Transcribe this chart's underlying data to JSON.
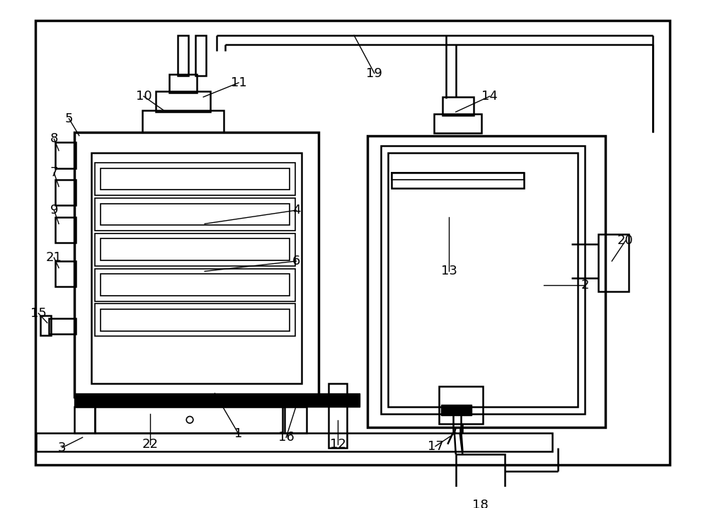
{
  "bg_color": "#ffffff",
  "figsize": [
    10.0,
    7.18
  ],
  "dpi": 100,
  "lw_thin": 1.2,
  "lw_med": 1.8,
  "lw_thick": 2.5
}
